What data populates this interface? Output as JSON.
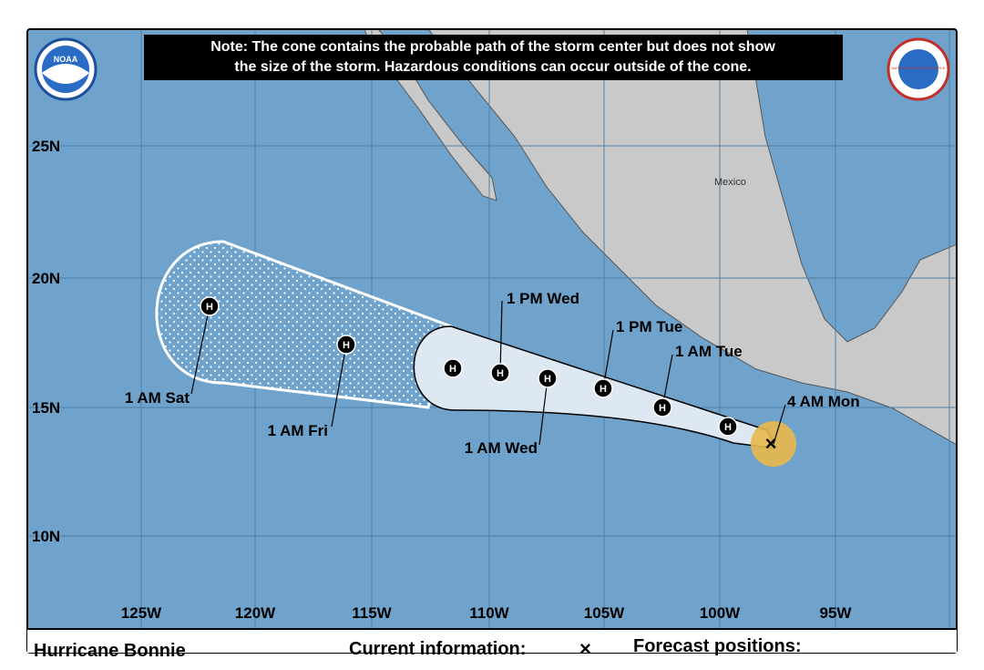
{
  "note": {
    "line1": "Note: The cone contains the probable path of the storm center but does not show",
    "line2": "the size of the storm. Hazardous conditions can occur outside of the cone."
  },
  "logos": {
    "noaa": "NOAA",
    "nws": "NATIONAL WEATHER SERVICE"
  },
  "lat_labels": [
    "25N",
    "20N",
    "15N",
    "10N"
  ],
  "lon_labels": [
    "125W",
    "120W",
    "115W",
    "110W",
    "105W",
    "100W",
    "95W"
  ],
  "place": "Mexico",
  "marker_letter": "H",
  "forecast_labels": [
    "1 PM Wed",
    "1 PM Tue",
    "1 AM Tue",
    "4 AM Mon",
    "1 AM Wed",
    "1 AM Fri",
    "1 AM Sat"
  ],
  "footer": {
    "storm": "Hurricane Bonnie",
    "current": "Current information:",
    "forecast": "Forecast positions:"
  }
}
